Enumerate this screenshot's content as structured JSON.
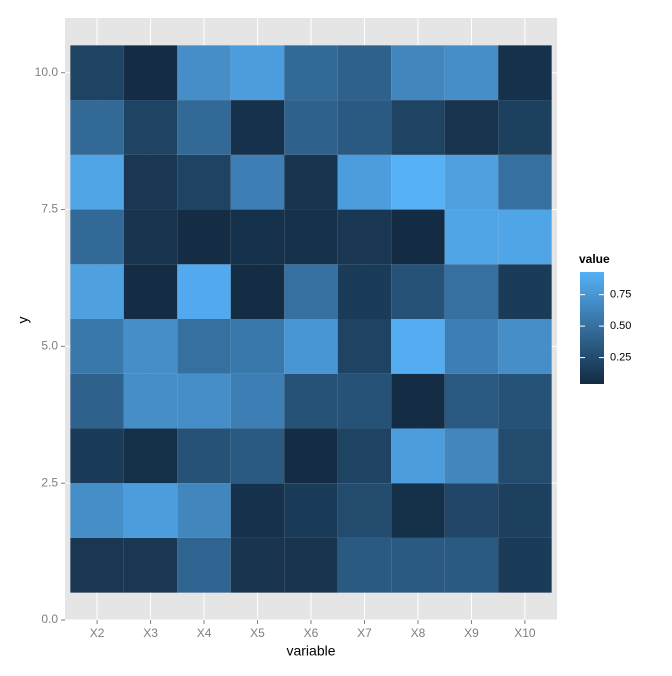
{
  "chart_data": {
    "type": "heatmap",
    "xlabel": "variable",
    "ylabel": "y",
    "legend_title": "value",
    "categories": [
      "X2",
      "X3",
      "X4",
      "X5",
      "X6",
      "X7",
      "X8",
      "X9",
      "X10"
    ],
    "y": [
      1,
      2,
      3,
      4,
      5,
      6,
      7,
      8,
      9,
      10
    ],
    "values": [
      [
        0.12,
        0.12,
        0.42,
        0.1,
        0.1,
        0.35,
        0.35,
        0.35,
        0.15
      ],
      [
        0.7,
        0.8,
        0.65,
        0.08,
        0.15,
        0.25,
        0.07,
        0.22,
        0.18
      ],
      [
        0.15,
        0.07,
        0.3,
        0.35,
        0.05,
        0.2,
        0.8,
        0.65,
        0.25
      ],
      [
        0.4,
        0.7,
        0.7,
        0.6,
        0.3,
        0.3,
        0.05,
        0.35,
        0.3
      ],
      [
        0.55,
        0.7,
        0.5,
        0.55,
        0.75,
        0.2,
        0.9,
        0.6,
        0.7
      ],
      [
        0.82,
        0.05,
        0.88,
        0.05,
        0.5,
        0.15,
        0.3,
        0.5,
        0.15
      ],
      [
        0.45,
        0.1,
        0.05,
        0.08,
        0.08,
        0.12,
        0.04,
        0.85,
        0.85
      ],
      [
        0.85,
        0.12,
        0.2,
        0.6,
        0.1,
        0.8,
        0.93,
        0.82,
        0.5
      ],
      [
        0.45,
        0.2,
        0.45,
        0.08,
        0.4,
        0.35,
        0.2,
        0.1,
        0.18
      ],
      [
        0.2,
        0.05,
        0.7,
        0.8,
        0.45,
        0.4,
        0.65,
        0.7,
        0.08
      ]
    ],
    "low_color": "#132B43",
    "high_color": "#56B1F7",
    "ylim": [
      0,
      11
    ],
    "yticks": [
      {
        "value": 0,
        "label": "0.0"
      },
      2.5,
      {
        "value": 5,
        "label": "5.0"
      },
      7.5,
      {
        "value": 10,
        "label": "10.0"
      }
    ],
    "legend_ticks": [
      {
        "value": 0.25,
        "label": "0.25"
      },
      {
        "value": 0.5,
        "label": "0.50"
      },
      {
        "value": 0.75,
        "label": "0.75"
      }
    ],
    "grid": true,
    "legend_position": "right"
  }
}
